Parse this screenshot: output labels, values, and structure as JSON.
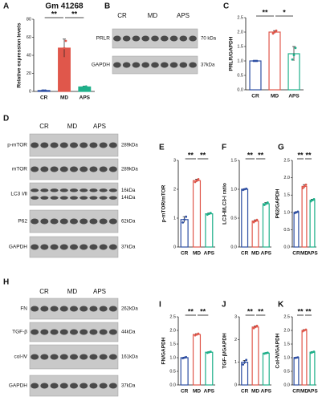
{
  "chart_data": [
    {
      "type": "bar",
      "panel": "A",
      "title": "Gm 41268",
      "ylabel": "Relative expression levels",
      "categories": [
        "CR",
        "MD",
        "APS"
      ],
      "values": [
        1,
        48,
        5
      ],
      "errors": [
        0.5,
        10,
        1
      ],
      "points": [
        [
          1,
          1,
          1
        ],
        [
          40,
          48,
          56
        ],
        [
          4.5,
          5,
          5.5
        ]
      ],
      "colors": [
        "#2e4fa3",
        "#e0574b",
        "#1fb08a"
      ],
      "filled": true,
      "ylim": [
        0,
        80
      ],
      "yticks": [
        0,
        20,
        40,
        60,
        80
      ],
      "significance": [
        "**",
        "**"
      ]
    },
    {
      "type": "bar",
      "panel": "C",
      "ylabel": "PRLR/GAPDH",
      "categories": [
        "CR",
        "MD",
        "APS"
      ],
      "values": [
        1.0,
        2.0,
        1.25
      ],
      "errors": [
        0.02,
        0.05,
        0.25
      ],
      "points": [
        [
          1.0,
          1.0,
          1.0
        ],
        [
          1.95,
          2.0,
          2.05
        ],
        [
          1.05,
          1.2,
          1.45
        ]
      ],
      "colors": [
        "#2e4fa3",
        "#e0574b",
        "#1fb08a"
      ],
      "filled": false,
      "ylim": [
        0,
        2.5
      ],
      "yticks": [
        {
          "value": 0,
          "label": "0.0"
        },
        0.5,
        {
          "value": 1,
          "label": "1.0"
        },
        1.5,
        {
          "value": 2,
          "label": "2.0"
        },
        2.5
      ],
      "significance": [
        "**",
        "*"
      ]
    },
    {
      "type": "bar",
      "panel": "E",
      "ylabel": "p-mTOR/mTOR",
      "categories": [
        "CR",
        "MD",
        "APS"
      ],
      "values": [
        0.95,
        2.3,
        1.15
      ],
      "errors": [
        0.1,
        0.05,
        0.03
      ],
      "points": [
        [
          0.85,
          0.95,
          1.05
        ],
        [
          2.25,
          2.3,
          2.35
        ],
        [
          1.12,
          1.15,
          1.18
        ]
      ],
      "colors": [
        "#2e4fa3",
        "#e0574b",
        "#1fb08a"
      ],
      "filled": false,
      "ylim": [
        0,
        3
      ],
      "yticks": [
        0,
        1,
        2,
        3
      ],
      "significance": [
        "**",
        "**"
      ]
    },
    {
      "type": "bar",
      "panel": "F",
      "ylabel": "LC3-Ⅱ/LC3-Ⅰ ratio",
      "categories": [
        "CR",
        "MD",
        "APS"
      ],
      "values": [
        1.0,
        0.45,
        0.75
      ],
      "errors": [
        0.01,
        0.02,
        0.02
      ],
      "points": [
        [
          0.99,
          1.0,
          1.01
        ],
        [
          0.43,
          0.45,
          0.47
        ],
        [
          0.73,
          0.75,
          0.77
        ]
      ],
      "colors": [
        "#2e4fa3",
        "#e0574b",
        "#1fb08a"
      ],
      "filled": false,
      "ylim": [
        0,
        1.5
      ],
      "yticks": [
        {
          "value": 0,
          "label": "0.0"
        },
        0.5,
        {
          "value": 1,
          "label": "1.0"
        },
        1.5
      ],
      "significance": [
        "**",
        "**"
      ]
    },
    {
      "type": "bar",
      "panel": "G",
      "ylabel": "P62/GAPDH",
      "categories": [
        "CR",
        "MD",
        "APS"
      ],
      "values": [
        1.0,
        1.75,
        1.35
      ],
      "errors": [
        0.02,
        0.05,
        0.03
      ],
      "points": [
        [
          0.98,
          1.0,
          1.02
        ],
        [
          1.7,
          1.75,
          1.8
        ],
        [
          1.32,
          1.35,
          1.38
        ]
      ],
      "colors": [
        "#2e4fa3",
        "#e0574b",
        "#1fb08a"
      ],
      "filled": false,
      "ylim": [
        0,
        2.5
      ],
      "yticks": [
        {
          "value": 0,
          "label": "0.0"
        },
        0.5,
        {
          "value": 1,
          "label": "1.0"
        },
        1.5,
        {
          "value": 2,
          "label": "2.0"
        },
        2.5
      ],
      "significance": [
        "**",
        "**"
      ]
    },
    {
      "type": "bar",
      "panel": "I",
      "ylabel": "FN/GAPDH",
      "categories": [
        "CR",
        "MD",
        "APS"
      ],
      "values": [
        1.0,
        1.85,
        1.2
      ],
      "errors": [
        0.02,
        0.03,
        0.02
      ],
      "points": [
        [
          0.98,
          1.0,
          1.02
        ],
        [
          1.82,
          1.85,
          1.88
        ],
        [
          1.18,
          1.2,
          1.22
        ]
      ],
      "colors": [
        "#2e4fa3",
        "#e0574b",
        "#1fb08a"
      ],
      "filled": false,
      "ylim": [
        0,
        2.5
      ],
      "yticks": [
        {
          "value": 0,
          "label": "0.0"
        },
        0.5,
        {
          "value": 1,
          "label": "1.0"
        },
        1.5,
        {
          "value": 2,
          "label": "2.0"
        },
        2.5
      ],
      "significance": [
        "**",
        "**"
      ]
    },
    {
      "type": "bar",
      "panel": "J",
      "ylabel": "TGF-β/GAPDH",
      "categories": [
        "CR",
        "MD",
        "APS"
      ],
      "values": [
        1.0,
        2.55,
        1.4
      ],
      "errors": [
        0.08,
        0.05,
        0.02
      ],
      "points": [
        [
          0.9,
          1.0,
          1.1
        ],
        [
          2.5,
          2.55,
          2.6
        ],
        [
          1.38,
          1.4,
          1.42
        ]
      ],
      "colors": [
        "#2e4fa3",
        "#e0574b",
        "#1fb08a"
      ],
      "filled": false,
      "ylim": [
        0,
        3
      ],
      "yticks": [
        0,
        1,
        2,
        3
      ],
      "significance": [
        "**",
        "**"
      ]
    },
    {
      "type": "bar",
      "panel": "K",
      "ylabel": "Col-Ⅳ/GAPDH",
      "categories": [
        "CR",
        "MD",
        "APS"
      ],
      "values": [
        1.0,
        2.0,
        1.2
      ],
      "errors": [
        0.01,
        0.03,
        0.02
      ],
      "points": [
        [
          0.99,
          1.0,
          1.01
        ],
        [
          1.97,
          2.0,
          2.03
        ],
        [
          1.18,
          1.2,
          1.22
        ]
      ],
      "colors": [
        "#2e4fa3",
        "#e0574b",
        "#1fb08a"
      ],
      "filled": false,
      "ylim": [
        0,
        2.5
      ],
      "yticks": [
        {
          "value": 0,
          "label": "0.0"
        },
        0.5,
        {
          "value": 1,
          "label": "1.0"
        },
        1.5,
        {
          "value": 2,
          "label": "2.0"
        },
        2.5
      ],
      "significance": [
        "**",
        "**"
      ]
    }
  ],
  "blots": [
    {
      "panel": "B",
      "columns": [
        "CR",
        "MD",
        "APS"
      ],
      "rows": [
        {
          "label": "PRLR",
          "sizes": [
            "70 kDa"
          ]
        },
        {
          "label": "GAPDH",
          "sizes": [
            "37kDa"
          ]
        }
      ]
    },
    {
      "panel": "D",
      "columns": [
        "CR",
        "MD",
        "APS"
      ],
      "rows": [
        {
          "label": "p-mTOR",
          "sizes": [
            "289kDa"
          ]
        },
        {
          "label": "mTOR",
          "sizes": [
            "289kDa"
          ]
        },
        {
          "label": "LC3 Ⅰ/Ⅱ",
          "sizes": [
            "16kDa",
            "14kDa"
          ]
        },
        {
          "label": "P62",
          "sizes": [
            "62kDa"
          ]
        },
        {
          "label": "GAPDH",
          "sizes": [
            "37kDa"
          ]
        }
      ]
    },
    {
      "panel": "H",
      "columns": [
        "CR",
        "MD",
        "APS"
      ],
      "rows": [
        {
          "label": "FN",
          "sizes": [
            "262kDa"
          ]
        },
        {
          "label": "TGF-β",
          "sizes": [
            "44kDa"
          ]
        },
        {
          "label": "col-Ⅳ",
          "sizes": [
            "161kDa"
          ]
        },
        {
          "label": "GAPDH",
          "sizes": [
            "37kDa"
          ]
        }
      ]
    }
  ]
}
